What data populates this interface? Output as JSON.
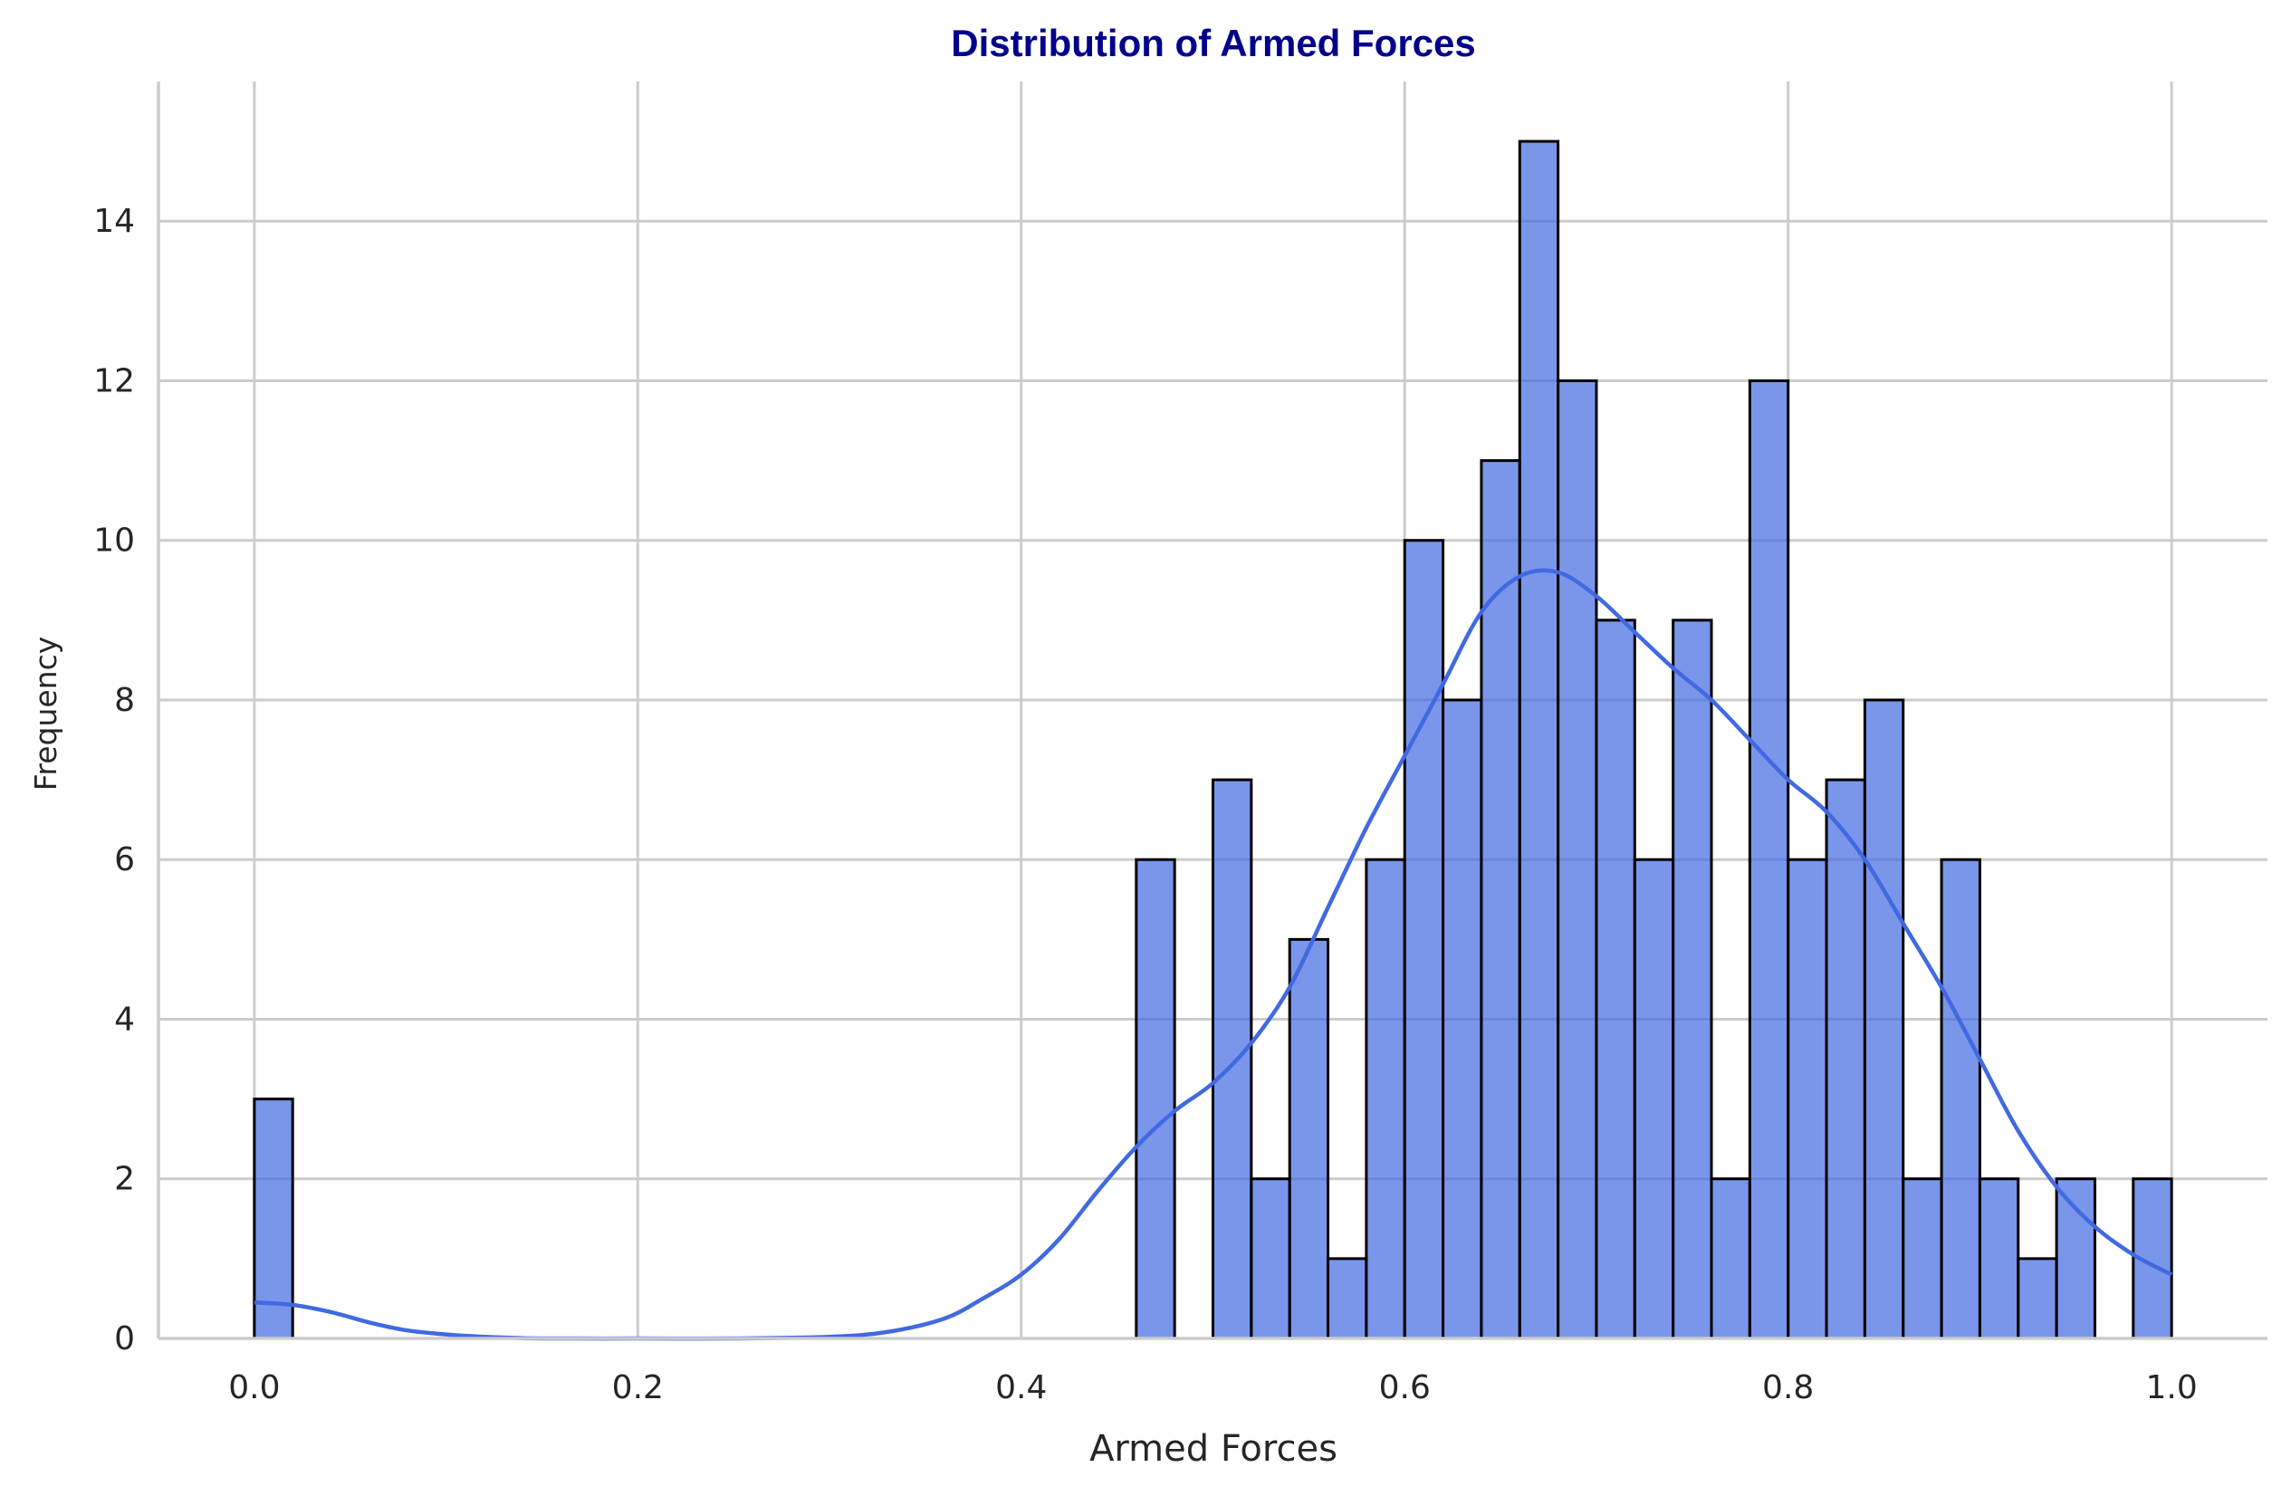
{
  "chart_data": {
    "type": "bar",
    "subtype": "histogram-with-kde",
    "title": "Distribution of Armed Forces",
    "xlabel": "Armed Forces",
    "ylabel": "Frequency",
    "xlim": [
      -0.05,
      1.05
    ],
    "ylim": [
      0,
      15.75
    ],
    "xticks": [
      0.0,
      0.2,
      0.4,
      0.6,
      0.8,
      1.0
    ],
    "xtick_labels": [
      "0.0",
      "0.2",
      "0.4",
      "0.6",
      "0.8",
      "1.0"
    ],
    "yticks": [
      0,
      2,
      4,
      6,
      8,
      10,
      12,
      14
    ],
    "ytick_labels": [
      "0",
      "2",
      "4",
      "6",
      "8",
      "10",
      "12",
      "14"
    ],
    "grid": true,
    "bin_width": 0.02,
    "bin_start": 0.0,
    "counts": [
      3,
      0,
      0,
      0,
      0,
      0,
      0,
      0,
      0,
      0,
      0,
      0,
      0,
      0,
      0,
      0,
      0,
      0,
      0,
      0,
      0,
      0,
      0,
      6,
      0,
      7,
      2,
      5,
      1,
      6,
      10,
      8,
      11,
      15,
      12,
      9,
      6,
      9,
      2,
      12,
      6,
      7,
      8,
      2,
      6,
      2,
      1,
      2,
      0,
      2
    ],
    "kde": {
      "x": [
        0.0,
        0.02,
        0.04,
        0.06,
        0.08,
        0.1,
        0.12,
        0.15,
        0.2,
        0.25,
        0.3,
        0.33,
        0.36,
        0.38,
        0.4,
        0.42,
        0.44,
        0.46,
        0.48,
        0.5,
        0.52,
        0.54,
        0.56,
        0.58,
        0.6,
        0.62,
        0.64,
        0.66,
        0.68,
        0.7,
        0.72,
        0.74,
        0.76,
        0.78,
        0.8,
        0.82,
        0.84,
        0.86,
        0.88,
        0.9,
        0.92,
        0.94,
        0.96,
        0.98,
        1.0
      ],
      "y": [
        0.45,
        0.42,
        0.33,
        0.2,
        0.1,
        0.05,
        0.02,
        0.0,
        0.0,
        0.0,
        0.02,
        0.08,
        0.25,
        0.5,
        0.8,
        1.25,
        1.85,
        2.4,
        2.85,
        3.2,
        3.7,
        4.4,
        5.4,
        6.4,
        7.3,
        8.2,
        9.1,
        9.55,
        9.6,
        9.3,
        8.85,
        8.4,
        8.0,
        7.5,
        7.0,
        6.6,
        6.0,
        5.2,
        4.4,
        3.5,
        2.6,
        1.9,
        1.4,
        1.05,
        0.8
      ]
    },
    "colors": {
      "bar": "#4169E1",
      "edge": "#000000",
      "kde": "#4169E1",
      "title": "#00008B",
      "grid": "#cccccc"
    }
  }
}
